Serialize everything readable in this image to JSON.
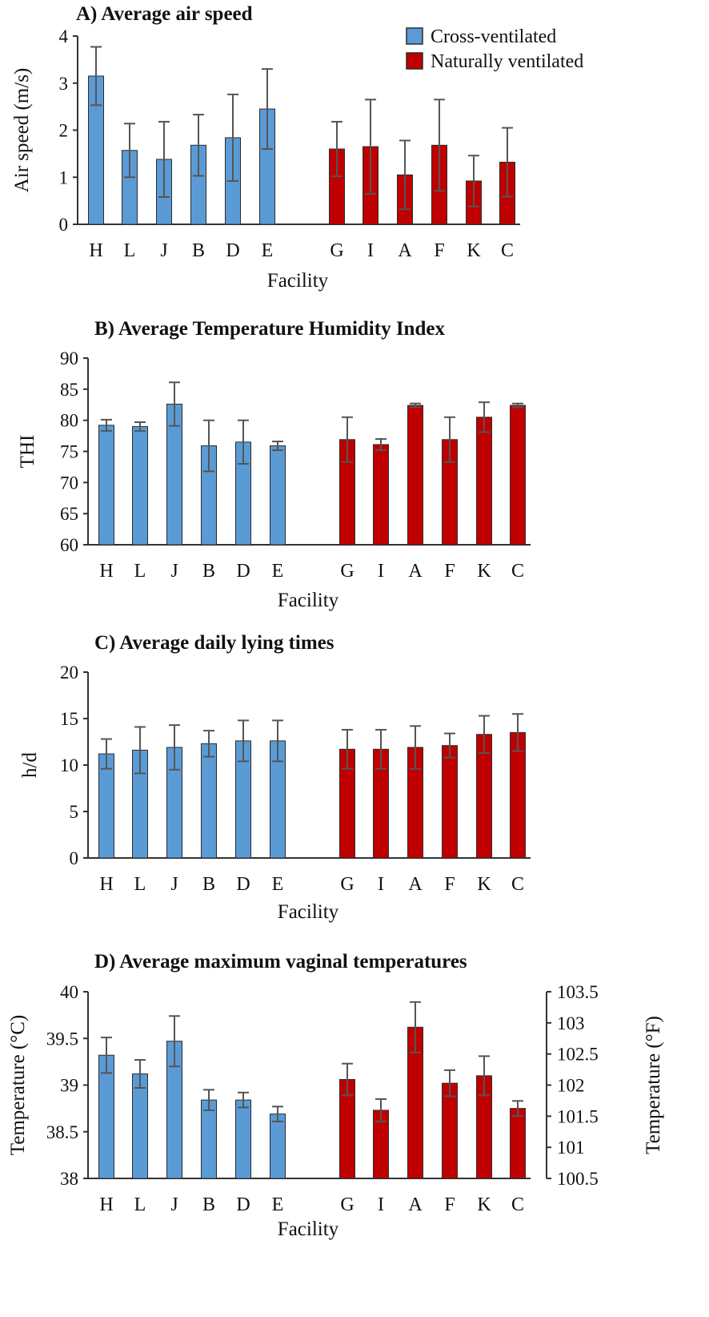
{
  "legend": {
    "cross_label": "Cross-ventilated",
    "natural_label": "Naturally  ventilated"
  },
  "colors": {
    "cross": "#5b9bd5",
    "natural": "#c00000",
    "bar_edge": "#2b2b2b",
    "error": "#555555"
  },
  "chart_data": [
    {
      "id": "A",
      "type": "bar",
      "title": "A) Average air speed",
      "xlabel": "Facility",
      "ylabel": "Air speed (m/s)",
      "ylim": [
        0,
        4
      ],
      "yticks": [
        0,
        1,
        2,
        3,
        4
      ],
      "categories": [
        "H",
        "L",
        "J",
        "B",
        "D",
        "E",
        "G",
        "I",
        "A",
        "F",
        "K",
        "C"
      ],
      "groups": [
        "cross",
        "cross",
        "cross",
        "cross",
        "cross",
        "cross",
        "natural",
        "natural",
        "natural",
        "natural",
        "natural",
        "natural"
      ],
      "values": [
        3.15,
        1.57,
        1.38,
        1.68,
        1.84,
        2.45,
        1.6,
        1.65,
        1.05,
        1.68,
        0.92,
        1.32
      ],
      "errors": [
        0.62,
        0.57,
        0.8,
        0.65,
        0.92,
        0.85,
        0.58,
        1.0,
        0.73,
        0.97,
        0.54,
        0.73
      ]
    },
    {
      "id": "B",
      "type": "bar",
      "title": "B) Average Temperature  Humidity  Index",
      "xlabel": "Facility",
      "ylabel": "THI",
      "ylim": [
        60,
        90
      ],
      "yticks": [
        60,
        65,
        70,
        75,
        80,
        85,
        90
      ],
      "categories": [
        "H",
        "L",
        "J",
        "B",
        "D",
        "E",
        "G",
        "I",
        "A",
        "F",
        "K",
        "C"
      ],
      "groups": [
        "cross",
        "cross",
        "cross",
        "cross",
        "cross",
        "cross",
        "natural",
        "natural",
        "natural",
        "natural",
        "natural",
        "natural"
      ],
      "values": [
        79.2,
        79.0,
        82.6,
        75.9,
        76.5,
        75.9,
        76.9,
        76.1,
        82.4,
        76.9,
        80.5,
        82.4
      ],
      "errors": [
        0.9,
        0.7,
        3.5,
        4.1,
        3.5,
        0.7,
        3.6,
        0.9,
        0.3,
        3.6,
        2.4,
        0.3
      ]
    },
    {
      "id": "C",
      "type": "bar",
      "title": "C) Average daily  lying  times",
      "xlabel": "Facility",
      "ylabel": "h/d",
      "ylim": [
        0,
        20
      ],
      "yticks": [
        0,
        5,
        10,
        15,
        20
      ],
      "categories": [
        "H",
        "L",
        "J",
        "B",
        "D",
        "E",
        "G",
        "I",
        "A",
        "F",
        "K",
        "C"
      ],
      "groups": [
        "cross",
        "cross",
        "cross",
        "cross",
        "cross",
        "cross",
        "natural",
        "natural",
        "natural",
        "natural",
        "natural",
        "natural"
      ],
      "values": [
        11.2,
        11.6,
        11.9,
        12.3,
        12.6,
        12.6,
        11.7,
        11.7,
        11.9,
        12.1,
        13.3,
        13.5
      ],
      "errors": [
        1.6,
        2.5,
        2.4,
        1.4,
        2.2,
        2.2,
        2.1,
        2.1,
        2.3,
        1.3,
        2.0,
        2.0
      ]
    },
    {
      "id": "D",
      "type": "bar",
      "title": "D) Average maximum  vaginal temperatures",
      "xlabel": "Facility",
      "ylabel": "Temperature (°C)",
      "y2label": "Temperature (°F)",
      "ylim": [
        38,
        40
      ],
      "yticks": [
        38,
        38.5,
        39,
        39.5,
        40
      ],
      "y2lim": [
        100.5,
        103.5
      ],
      "y2ticks": [
        100.5,
        101,
        101.5,
        102,
        102.5,
        103,
        103.5
      ],
      "categories": [
        "H",
        "L",
        "J",
        "B",
        "D",
        "E",
        "G",
        "I",
        "A",
        "F",
        "K",
        "C"
      ],
      "groups": [
        "cross",
        "cross",
        "cross",
        "cross",
        "cross",
        "cross",
        "natural",
        "natural",
        "natural",
        "natural",
        "natural",
        "natural"
      ],
      "values": [
        39.32,
        39.12,
        39.47,
        38.84,
        38.84,
        38.69,
        39.06,
        38.73,
        39.62,
        39.02,
        39.1,
        38.75
      ],
      "errors": [
        0.19,
        0.15,
        0.27,
        0.11,
        0.08,
        0.08,
        0.17,
        0.12,
        0.27,
        0.14,
        0.21,
        0.08
      ]
    }
  ]
}
